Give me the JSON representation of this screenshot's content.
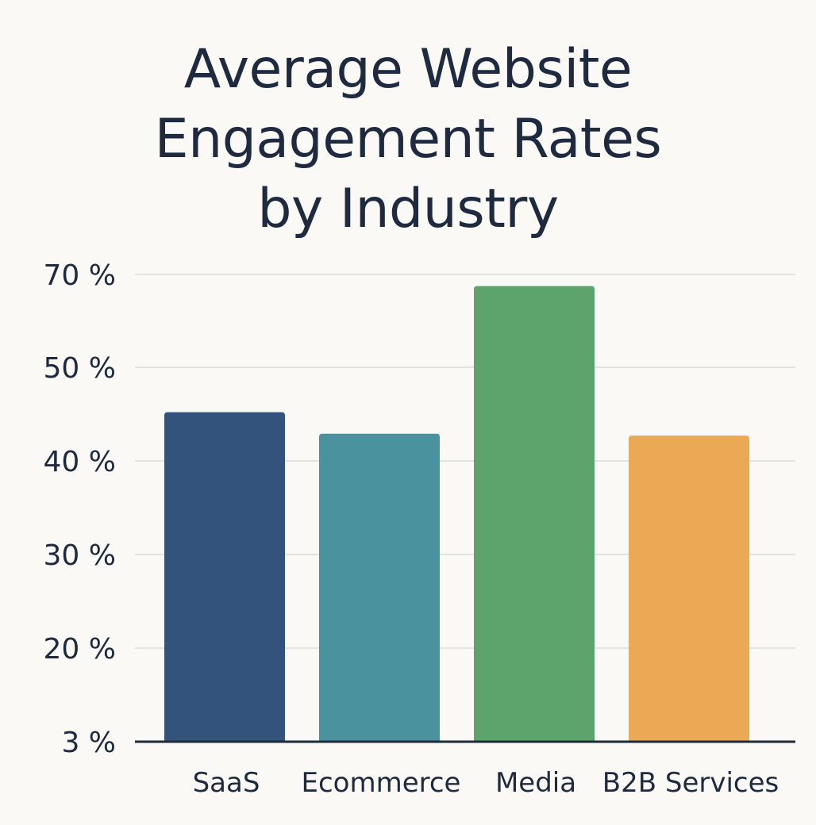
{
  "chart_data": {
    "type": "bar",
    "title": "Average Website Engagement Rates by Industry",
    "title_lines": [
      "Average Website",
      "Engagement Rates",
      "by Industry"
    ],
    "categories": [
      "SaaS",
      "Ecommerce",
      "Media",
      "B2B Services"
    ],
    "values": [
      45.2,
      42.9,
      67.5,
      42.7
    ],
    "colors": [
      "#34537c",
      "#4b929f",
      "#5ca36c",
      "#eba855"
    ],
    "y_ticks": [
      {
        "label": "3 %",
        "value": 3
      },
      {
        "label": "20 %",
        "value": 20
      },
      {
        "label": "30 %",
        "value": 30
      },
      {
        "label": "40 %",
        "value": 40
      },
      {
        "label": "50 %",
        "value": 50
      },
      {
        "label": "70 %",
        "value": 70
      }
    ],
    "xlabel": "",
    "ylabel": "",
    "grid": true,
    "legend": "none"
  }
}
